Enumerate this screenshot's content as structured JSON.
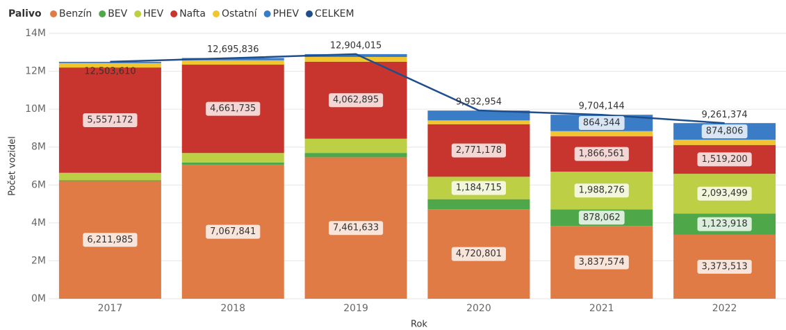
{
  "chart_data": {
    "type": "stacked-bar-line",
    "legend_title": "Palivo",
    "x_label": "Rok",
    "y_label": "Počet vozidel",
    "categories": [
      "2017",
      "2018",
      "2019",
      "2020",
      "2021",
      "2022"
    ],
    "ylim": [
      0,
      14000000
    ],
    "yticks": [
      {
        "value": 0,
        "label": "0M"
      },
      {
        "value": 2000000,
        "label": "2M"
      },
      {
        "value": 4000000,
        "label": "4M"
      },
      {
        "value": 6000000,
        "label": "6M"
      },
      {
        "value": 8000000,
        "label": "8M"
      },
      {
        "value": 10000000,
        "label": "10M"
      },
      {
        "value": 12000000,
        "label": "12M"
      },
      {
        "value": 14000000,
        "label": "14M"
      }
    ],
    "grid": true,
    "legend": "top-left",
    "series": [
      {
        "name": "Benzín",
        "color": "#e07b45",
        "values": [
          6211985,
          7067841,
          7461633,
          4720801,
          3837574,
          3373513
        ],
        "value_labels": [
          "6,211,985",
          "7,067,841",
          "7,461,633",
          "4,720,801",
          "3,837,574",
          "3,373,513"
        ]
      },
      {
        "name": "BEV",
        "color": "#4ea84a",
        "values": [
          40000,
          120000,
          230000,
          530000,
          878062,
          1123918
        ],
        "value_labels": [
          null,
          null,
          null,
          null,
          "878,062",
          "1,123,918"
        ]
      },
      {
        "name": "HEV",
        "color": "#bccf45",
        "values": [
          390000,
          500000,
          750000,
          1184715,
          1988276,
          2093499
        ],
        "value_labels": [
          null,
          null,
          null,
          "1,184,715",
          "1,988,276",
          "2,093,499"
        ]
      },
      {
        "name": "Nafta",
        "color": "#c8352e",
        "values": [
          5557172,
          4661735,
          4062895,
          2771178,
          1866561,
          1519200
        ],
        "value_labels": [
          "5,557,172",
          "4,661,735",
          "4,062,895",
          "2,771,178",
          "1,866,561",
          "1,519,200"
        ]
      },
      {
        "name": "Ostatní",
        "color": "#f2c530",
        "values": [
          230000,
          230000,
          250000,
          200000,
          270000,
          280000
        ]
      },
      {
        "name": "PHEV",
        "color": "#3b7cc6",
        "values": [
          70000,
          120000,
          150000,
          520000,
          864344,
          874806
        ],
        "value_labels": [
          null,
          null,
          null,
          null,
          "864,344",
          "874,806"
        ]
      },
      {
        "name": "CELKEM",
        "color": "#1f4e8c",
        "type": "line",
        "values": [
          12503610,
          12695836,
          12904015,
          9932954,
          9704144,
          9261374
        ],
        "value_labels": [
          "12,503,610",
          "12,695,836",
          "12,904,015",
          "9,932,954",
          "9,704,144",
          "9,261,374"
        ]
      }
    ]
  }
}
